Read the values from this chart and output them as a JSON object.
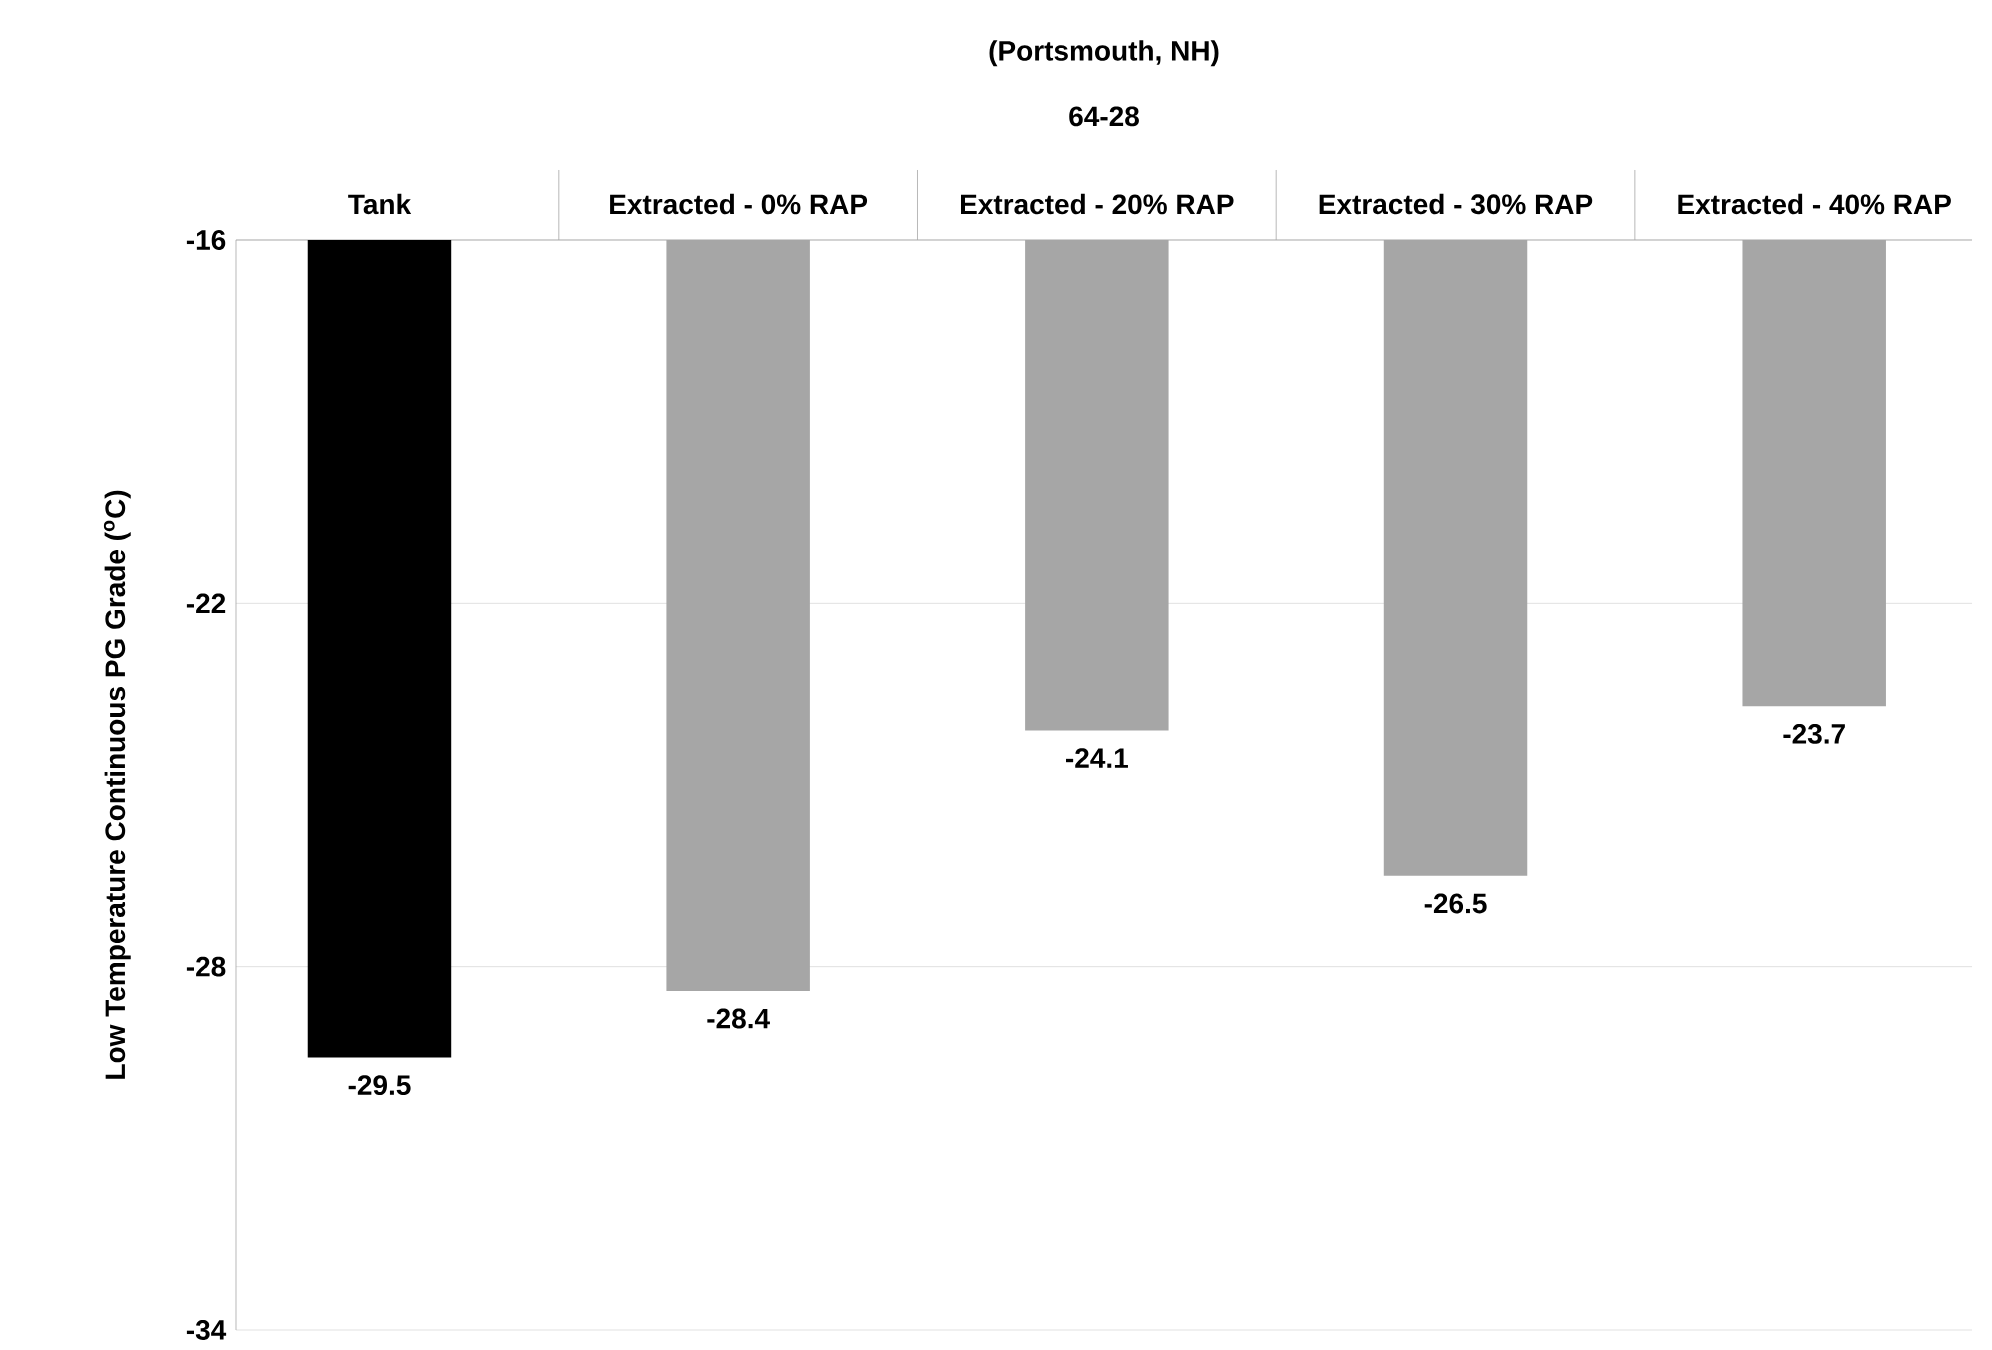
{
  "chart_data": {
    "type": "bar",
    "title": "(Portsmouth, NH)",
    "subtitle": "64-28",
    "ylabel": "Low Temperature Continuous PG Grade ($^{o}$C)",
    "categories": [
      "Tank",
      "Extracted - 0% RAP",
      "Extracted - 20% RAP",
      "Extracted - 30% RAP",
      "Extracted - 40% RAP"
    ],
    "values": [
      -29.5,
      -28.4,
      -24.1,
      -26.5,
      -23.7
    ],
    "colors": [
      "#000000",
      "#a6a6a6",
      "#a6a6a6",
      "#a6a6a6",
      "#a6a6a6"
    ],
    "ylim": [
      -34,
      -16
    ],
    "yticks": [
      -16,
      -22,
      -28,
      -34
    ],
    "grid": "y",
    "data_labels": true
  }
}
